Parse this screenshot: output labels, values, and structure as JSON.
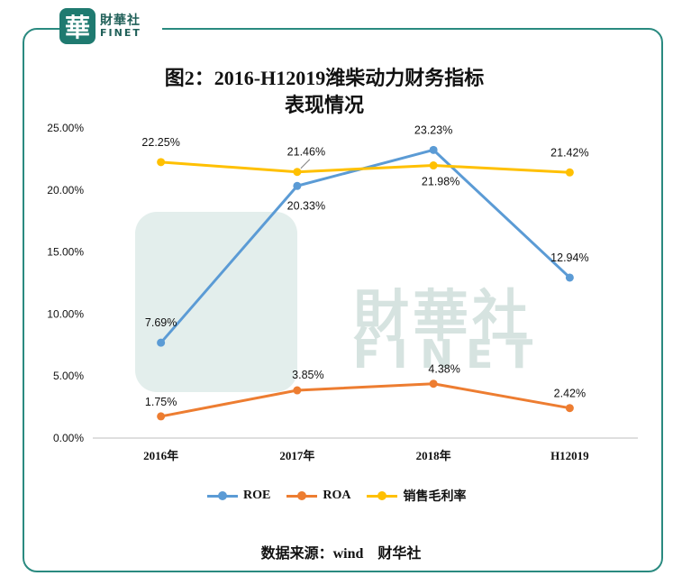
{
  "brand": {
    "logo_glyph": "華",
    "name_cn": "財華社",
    "name_en": "FINET",
    "watermark_cn": "財華社",
    "watermark_en": "FINET",
    "accent_color": "#1f7a70"
  },
  "source": "数据来源：wind　财华社",
  "chart_data": {
    "type": "line",
    "title": "图2：2016-H12019潍柴动力财务指标表现情况",
    "title_lines": [
      "图2：2016-H12019潍柴动力财务指标",
      "表现情况"
    ],
    "categories": [
      "2016年",
      "2017年",
      "2018年",
      "H12019"
    ],
    "y_ticks": [
      "0.00%",
      "5.00%",
      "10.00%",
      "15.00%",
      "20.00%",
      "25.00%"
    ],
    "ylim": [
      0,
      25
    ],
    "grid": false,
    "legend_position": "bottom",
    "series": [
      {
        "name": "ROE",
        "color": "#5b9bd5",
        "values": [
          7.69,
          20.33,
          23.23,
          12.94
        ],
        "labels": [
          "7.69%",
          "20.33%",
          "23.23%",
          "12.94%"
        ]
      },
      {
        "name": "ROA",
        "color": "#ed7d31",
        "values": [
          1.75,
          3.85,
          4.38,
          2.42
        ],
        "labels": [
          "1.75%",
          "3.85%",
          "4.38%",
          "2.42%"
        ]
      },
      {
        "name": "销售毛利率",
        "color": "#ffc000",
        "values": [
          22.25,
          21.46,
          21.98,
          21.42
        ],
        "labels": [
          "22.25%",
          "21.46%",
          "21.98%",
          "21.42%"
        ]
      }
    ]
  }
}
